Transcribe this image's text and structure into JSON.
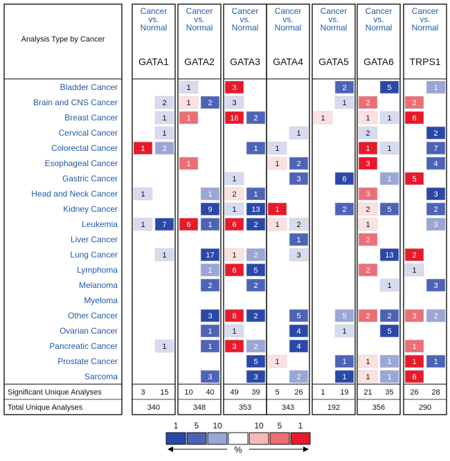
{
  "chart_data": {
    "type": "heatmap",
    "header_label": "Analysis Type by Cancer",
    "comparison_label_lines": [
      "Cancer",
      "vs.",
      "Normal"
    ],
    "genes": [
      "GATA1",
      "GATA2",
      "GATA3",
      "GATA4",
      "GATA5",
      "GATA6",
      "TRPS1"
    ],
    "cancers": [
      "Bladder Cancer",
      "Brain and CNS Cancer",
      "Breast Cancer",
      "Cervical Cancer",
      "Colorectal Cancer",
      "Esophageal Cancer",
      "Gastric Cancer",
      "Head and Neck Cancer",
      "Kidney Cancer",
      "Leukemia",
      "Liver Cancer",
      "Lung Cancer",
      "Lymphoma",
      "Melanoma",
      "Myeloma",
      "Other Cancer",
      "Ovarian Cancer",
      "Pancreatic Cancer",
      "Prostate Cancer",
      "Sarcoma"
    ],
    "cells": [
      [
        [
          null,
          null
        ],
        [
          {
            "v": "1",
            "c": 3
          },
          null
        ],
        [
          {
            "v": "3",
            "c": 6
          },
          null
        ],
        [
          null,
          null
        ],
        [
          null,
          {
            "v": "2",
            "c": 1
          }
        ],
        [
          null,
          {
            "v": "5",
            "c": 0
          }
        ],
        [
          null,
          {
            "v": "1",
            "c": 2
          }
        ]
      ],
      [
        [
          null,
          {
            "v": "2",
            "c": 3
          }
        ],
        [
          {
            "v": "1",
            "c": 4
          },
          {
            "v": "2",
            "c": 1
          }
        ],
        [
          {
            "v": "3",
            "c": 3
          },
          null
        ],
        [
          null,
          null
        ],
        [
          null,
          {
            "v": "1",
            "c": 3
          }
        ],
        [
          {
            "v": "2",
            "c": 5
          },
          null
        ],
        [
          {
            "v": "2",
            "c": 5
          },
          null
        ]
      ],
      [
        [
          null,
          {
            "v": "1",
            "c": 3
          }
        ],
        [
          {
            "v": "1",
            "c": 5
          },
          null
        ],
        [
          {
            "v": "16",
            "c": 6
          },
          {
            "v": "2",
            "c": 1
          }
        ],
        [
          null,
          null
        ],
        [
          {
            "v": "1",
            "c": 4
          },
          null
        ],
        [
          {
            "v": "1",
            "c": 4
          },
          {
            "v": "1",
            "c": 3
          }
        ],
        [
          {
            "v": "6",
            "c": 6
          },
          null
        ]
      ],
      [
        [
          null,
          {
            "v": "1",
            "c": 3
          }
        ],
        [
          null,
          null
        ],
        [
          null,
          null
        ],
        [
          null,
          {
            "v": "1",
            "c": 3
          }
        ],
        [
          null,
          null
        ],
        [
          {
            "v": "2",
            "c": 3
          },
          null
        ],
        [
          null,
          {
            "v": "2",
            "c": 0
          }
        ]
      ],
      [
        [
          {
            "v": "1",
            "c": 6
          },
          {
            "v": "2",
            "c": 2
          }
        ],
        [
          null,
          null
        ],
        [
          null,
          {
            "v": "1",
            "c": 1
          }
        ],
        [
          {
            "v": "1",
            "c": 3
          },
          null
        ],
        [
          null,
          null
        ],
        [
          {
            "v": "1",
            "c": 6
          },
          {
            "v": "1",
            "c": 3
          }
        ],
        [
          null,
          {
            "v": "7",
            "c": 1
          }
        ]
      ],
      [
        [
          null,
          null
        ],
        [
          {
            "v": "1",
            "c": 5
          },
          null
        ],
        [
          null,
          null
        ],
        [
          {
            "v": "1",
            "c": 4
          },
          {
            "v": "2",
            "c": 1
          }
        ],
        [
          null,
          null
        ],
        [
          {
            "v": "3",
            "c": 6
          },
          null
        ],
        [
          null,
          {
            "v": "4",
            "c": 1
          }
        ]
      ],
      [
        [
          null,
          null
        ],
        [
          null,
          null
        ],
        [
          {
            "v": "1",
            "c": 3
          },
          null
        ],
        [
          null,
          {
            "v": "3",
            "c": 1
          }
        ],
        [
          null,
          {
            "v": "6",
            "c": 0
          }
        ],
        [
          null,
          {
            "v": "1",
            "c": 2
          }
        ],
        [
          {
            "v": "5",
            "c": 6
          },
          null
        ]
      ],
      [
        [
          {
            "v": "1",
            "c": 3
          },
          null
        ],
        [
          null,
          {
            "v": "1",
            "c": 2
          }
        ],
        [
          {
            "v": "2",
            "c": 4
          },
          {
            "v": "1",
            "c": 1
          }
        ],
        [
          null,
          null
        ],
        [
          null,
          null
        ],
        [
          {
            "v": "3",
            "c": 5
          },
          null
        ],
        [
          null,
          {
            "v": "3",
            "c": 0
          }
        ]
      ],
      [
        [
          null,
          null
        ],
        [
          null,
          {
            "v": "9",
            "c": 0
          }
        ],
        [
          {
            "v": "1",
            "c": 3
          },
          {
            "v": "13",
            "c": 0
          }
        ],
        [
          {
            "v": "1",
            "c": 6
          },
          null
        ],
        [
          null,
          {
            "v": "2",
            "c": 1
          }
        ],
        [
          {
            "v": "2",
            "c": 4
          },
          {
            "v": "5",
            "c": 1
          }
        ],
        [
          null,
          {
            "v": "2",
            "c": 1
          }
        ]
      ],
      [
        [
          {
            "v": "1",
            "c": 3
          },
          {
            "v": "7",
            "c": 0
          }
        ],
        [
          {
            "v": "6",
            "c": 6
          },
          {
            "v": "1",
            "c": 1
          }
        ],
        [
          {
            "v": "6",
            "c": 6
          },
          {
            "v": "2",
            "c": 0
          }
        ],
        [
          {
            "v": "1",
            "c": 4
          },
          {
            "v": "2",
            "c": 3
          }
        ],
        [
          null,
          null
        ],
        [
          {
            "v": "1",
            "c": 4
          },
          null
        ],
        [
          null,
          {
            "v": "3",
            "c": 2
          }
        ]
      ],
      [
        [
          null,
          null
        ],
        [
          null,
          null
        ],
        [
          null,
          null
        ],
        [
          null,
          {
            "v": "1",
            "c": 1
          }
        ],
        [
          null,
          null
        ],
        [
          {
            "v": "2",
            "c": 5
          },
          null
        ],
        [
          null,
          null
        ]
      ],
      [
        [
          null,
          {
            "v": "1",
            "c": 3
          }
        ],
        [
          null,
          {
            "v": "17",
            "c": 0
          }
        ],
        [
          {
            "v": "1",
            "c": 4
          },
          {
            "v": "2",
            "c": 2
          }
        ],
        [
          null,
          {
            "v": "3",
            "c": 3
          }
        ],
        [
          null,
          null
        ],
        [
          null,
          {
            "v": "13",
            "c": 0
          }
        ],
        [
          {
            "v": "2",
            "c": 6
          },
          null
        ]
      ],
      [
        [
          null,
          null
        ],
        [
          null,
          {
            "v": "1",
            "c": 2
          }
        ],
        [
          {
            "v": "6",
            "c": 6
          },
          {
            "v": "5",
            "c": 0
          }
        ],
        [
          null,
          null
        ],
        [
          null,
          null
        ],
        [
          {
            "v": "2",
            "c": 5
          },
          null
        ],
        [
          {
            "v": "1",
            "c": 3
          },
          null
        ]
      ],
      [
        [
          null,
          null
        ],
        [
          null,
          {
            "v": "2",
            "c": 1
          }
        ],
        [
          null,
          {
            "v": "2",
            "c": 1
          }
        ],
        [
          null,
          null
        ],
        [
          null,
          null
        ],
        [
          null,
          {
            "v": "1",
            "c": 3
          }
        ],
        [
          null,
          {
            "v": "3",
            "c": 1
          }
        ]
      ],
      [
        [
          null,
          null
        ],
        [
          null,
          null
        ],
        [
          null,
          null
        ],
        [
          null,
          null
        ],
        [
          null,
          null
        ],
        [
          null,
          null
        ],
        [
          null,
          null
        ]
      ],
      [
        [
          null,
          null
        ],
        [
          null,
          {
            "v": "3",
            "c": 0
          }
        ],
        [
          {
            "v": "8",
            "c": 6
          },
          {
            "v": "2",
            "c": 0
          }
        ],
        [
          null,
          {
            "v": "5",
            "c": 1
          }
        ],
        [
          null,
          {
            "v": "5",
            "c": 2
          }
        ],
        [
          {
            "v": "2",
            "c": 5
          },
          {
            "v": "2",
            "c": 1
          }
        ],
        [
          {
            "v": "3",
            "c": 5
          },
          {
            "v": "2",
            "c": 2
          }
        ]
      ],
      [
        [
          null,
          null
        ],
        [
          null,
          {
            "v": "1",
            "c": 1
          }
        ],
        [
          {
            "v": "1",
            "c": 3
          },
          null
        ],
        [
          null,
          {
            "v": "4",
            "c": 0
          }
        ],
        [
          null,
          {
            "v": "1",
            "c": 3
          }
        ],
        [
          null,
          {
            "v": "5",
            "c": 0
          }
        ],
        [
          null,
          null
        ]
      ],
      [
        [
          null,
          {
            "v": "1",
            "c": 3
          }
        ],
        [
          null,
          {
            "v": "1",
            "c": 1
          }
        ],
        [
          {
            "v": "3",
            "c": 6
          },
          {
            "v": "2",
            "c": 2
          }
        ],
        [
          null,
          {
            "v": "4",
            "c": 0
          }
        ],
        [
          null,
          null
        ],
        [
          null,
          null
        ],
        [
          {
            "v": "1",
            "c": 5
          },
          null
        ]
      ],
      [
        [
          null,
          null
        ],
        [
          null,
          null
        ],
        [
          null,
          {
            "v": "5",
            "c": 0
          }
        ],
        [
          {
            "v": "1",
            "c": 4
          },
          null
        ],
        [
          null,
          {
            "v": "1",
            "c": 1
          }
        ],
        [
          {
            "v": "1",
            "c": 4
          },
          {
            "v": "1",
            "c": 2
          }
        ],
        [
          {
            "v": "1",
            "c": 6
          },
          {
            "v": "1",
            "c": 1
          }
        ]
      ],
      [
        [
          null,
          null
        ],
        [
          null,
          {
            "v": "3",
            "c": 1
          }
        ],
        [
          null,
          {
            "v": "3",
            "c": 0
          }
        ],
        [
          null,
          {
            "v": "2",
            "c": 2
          }
        ],
        [
          null,
          {
            "v": "1",
            "c": 0
          }
        ],
        [
          {
            "v": "1",
            "c": 4
          },
          {
            "v": "1",
            "c": 2
          }
        ],
        [
          {
            "v": "6",
            "c": 6
          },
          null
        ]
      ]
    ],
    "summary_rows": [
      {
        "label": "Significant Unique Analyses",
        "values": [
          [
            "3",
            "15"
          ],
          [
            "10",
            "40"
          ],
          [
            "49",
            "39"
          ],
          [
            "5",
            "26"
          ],
          [
            "1",
            "19"
          ],
          [
            "21",
            "35"
          ],
          [
            "26",
            "28"
          ]
        ]
      },
      {
        "label": "Total Unique Analyses",
        "values": [
          "340",
          "348",
          "353",
          "343",
          "192",
          "356",
          "290"
        ]
      }
    ],
    "legend": {
      "labels": [
        "1",
        "5",
        "10",
        "",
        "10",
        "5",
        "1"
      ],
      "unit": "%",
      "colors": [
        "#2a48a8",
        "#4d64b6",
        "#9aa6d6",
        "#ffffff",
        "#f4b8b8",
        "#ec6e76",
        "#e8192a"
      ]
    },
    "palette": [
      "#2a48a8",
      "#4d64b6",
      "#9aa6d6",
      "#d6dbef",
      "#fbe1e1",
      "#ec6e76",
      "#e8192a"
    ]
  }
}
